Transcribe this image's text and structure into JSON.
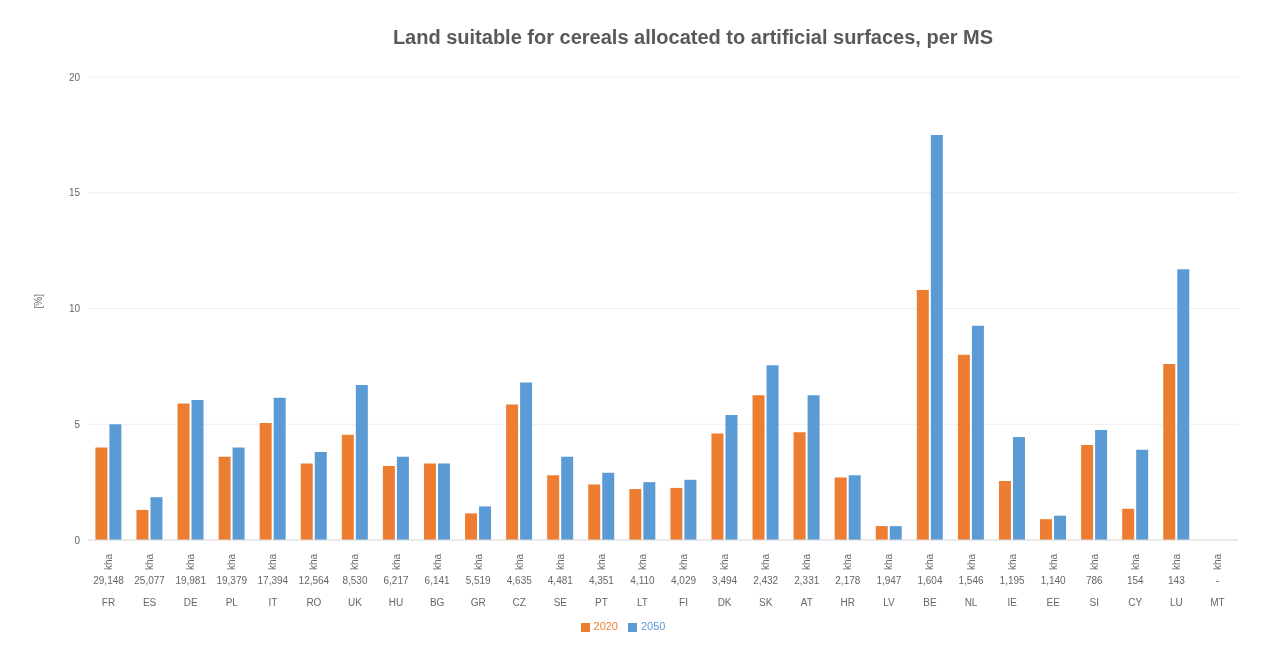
{
  "chart_data": {
    "type": "bar",
    "title": "Land suitable for cereals allocated to artificial surfaces, per MS",
    "ylabel": "[%]",
    "categories": [
      "kha\n29,148\nFR",
      "kha\n25,077\nES",
      "kha\n19,981\nDE",
      "kha\n19,379\nPL",
      "kha\n17,394\nIT",
      "kha\n12,564\nRO",
      "kha\n8,530\nUK",
      "kha\n6,217\nHU",
      "kha\n6,141\nBG",
      "kha\n5,519\nGR",
      "kha\n4,635\nCZ",
      "kha\n4,481\nSE",
      "kha\n4,351\nPT",
      "kha\n4,110\nLT",
      "kha\n4,029\nFI",
      "kha\n3,494\nDK",
      "kha\n2,432\nSK",
      "kha\n2,331\nAT",
      "kha\n2,178\nHR",
      "kha\n1,947\nLV",
      "kha\n1,604\nBE",
      "kha\n1,546\nNL",
      "kha\n1,195\nIE",
      "kha\n1,140\nEE",
      "kha\n786\nSI",
      "kha\n154\nCY",
      "kha\n143\nLU",
      "kha\n-\nMT"
    ],
    "series": [
      {
        "name": "2020",
        "color": "#ed7d31",
        "values": [
          4.0,
          1.3,
          5.9,
          3.6,
          5.05,
          3.3,
          4.55,
          3.2,
          3.3,
          1.15,
          5.85,
          2.8,
          2.4,
          2.2,
          2.25,
          4.6,
          6.25,
          4.65,
          2.7,
          0.6,
          10.8,
          8.0,
          2.55,
          0.9,
          4.1,
          1.35,
          7.6,
          null
        ]
      },
      {
        "name": "2050",
        "color": "#5b9bd5",
        "values": [
          5.0,
          1.85,
          6.05,
          4.0,
          6.15,
          3.8,
          6.7,
          3.6,
          3.3,
          1.45,
          6.8,
          3.6,
          2.9,
          2.5,
          2.6,
          5.4,
          7.55,
          6.25,
          2.8,
          0.6,
          17.5,
          9.25,
          4.45,
          1.05,
          4.75,
          3.9,
          11.7,
          null
        ]
      }
    ],
    "ylim": [
      0,
      20
    ],
    "yticks": [
      0,
      5,
      10,
      15,
      20
    ],
    "grid": "y",
    "legend": "bottom"
  }
}
